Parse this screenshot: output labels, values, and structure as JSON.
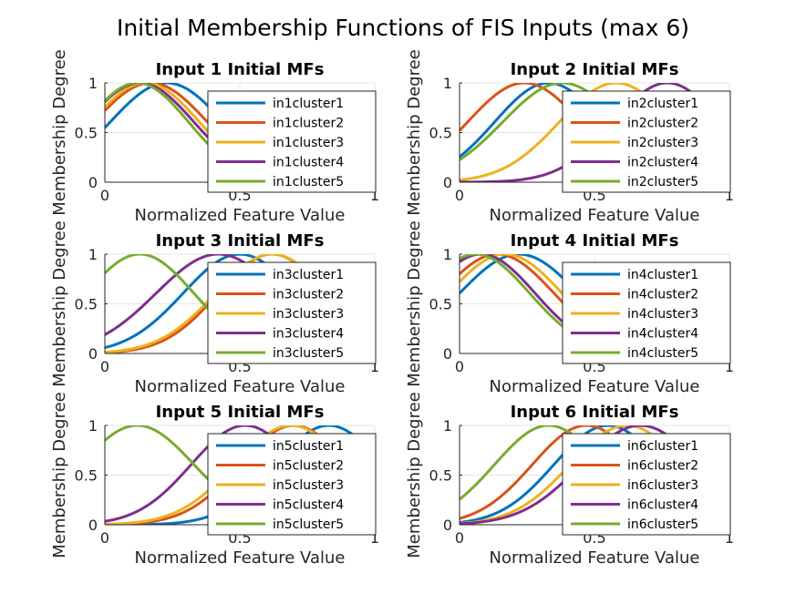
{
  "figure_title": "Initial Membership Functions of FIS Inputs (max 6)",
  "colors": [
    "#0072BD",
    "#D95319",
    "#EDB120",
    "#7E2F8E",
    "#77AC30"
  ],
  "chart_data": [
    {
      "type": "line",
      "title": "Input 1 Initial MFs",
      "xlabel": "Normalized Feature Value",
      "ylabel": "Membership Degree",
      "xlim": [
        0,
        1
      ],
      "ylim": [
        0,
        1
      ],
      "xticks": [
        "0",
        "0.5",
        "1"
      ],
      "yticks": [
        "0",
        "0.5",
        "1"
      ],
      "grid": true,
      "legend_position": "top-right",
      "series": [
        {
          "name": "in1cluster1",
          "mf": "gaussian",
          "center": 0.23,
          "sigma": 0.21
        },
        {
          "name": "in1cluster2",
          "mf": "gaussian",
          "center": 0.17,
          "sigma": 0.21
        },
        {
          "name": "in1cluster3",
          "mf": "gaussian",
          "center": 0.15,
          "sigma": 0.2
        },
        {
          "name": "in1cluster4",
          "mf": "gaussian",
          "center": 0.13,
          "sigma": 0.2
        },
        {
          "name": "in1cluster5",
          "mf": "gaussian",
          "center": 0.12,
          "sigma": 0.19
        }
      ]
    },
    {
      "type": "line",
      "title": "Input 2 Initial MFs",
      "xlabel": "Normalized Feature Value",
      "ylabel": "Membership Degree",
      "xlim": [
        0,
        1
      ],
      "ylim": [
        0,
        1
      ],
      "xticks": [
        "0",
        "0.5",
        "1"
      ],
      "yticks": [
        "0",
        "0.5",
        "1"
      ],
      "grid": true,
      "legend_position": "top-right",
      "series": [
        {
          "name": "in2cluster1",
          "mf": "gaussian",
          "center": 0.33,
          "sigma": 0.2
        },
        {
          "name": "in2cluster2",
          "mf": "gaussian",
          "center": 0.24,
          "sigma": 0.21
        },
        {
          "name": "in2cluster3",
          "mf": "gaussian",
          "center": 0.58,
          "sigma": 0.21
        },
        {
          "name": "in2cluster4",
          "mf": "gaussian",
          "center": 0.77,
          "sigma": 0.2
        },
        {
          "name": "in2cluster5",
          "mf": "gaussian",
          "center": 0.38,
          "sigma": 0.22
        }
      ]
    },
    {
      "type": "line",
      "title": "Input 3 Initial MFs",
      "xlabel": "Normalized Feature Value",
      "ylabel": "Membership Degree",
      "xlim": [
        0,
        1
      ],
      "ylim": [
        0,
        1
      ],
      "xticks": [
        "0",
        "0.5",
        "1"
      ],
      "yticks": [
        "0",
        "0.5",
        "1"
      ],
      "grid": true,
      "legend_position": "top-right",
      "series": [
        {
          "name": "in3cluster1",
          "mf": "gaussian",
          "center": 0.5,
          "sigma": 0.21
        },
        {
          "name": "in3cluster2",
          "mf": "gaussian",
          "center": 0.62,
          "sigma": 0.2
        },
        {
          "name": "in3cluster3",
          "mf": "gaussian",
          "center": 0.62,
          "sigma": 0.21
        },
        {
          "name": "in3cluster4",
          "mf": "gaussian",
          "center": 0.42,
          "sigma": 0.23
        },
        {
          "name": "in3cluster5",
          "mf": "gaussian",
          "center": 0.13,
          "sigma": 0.2
        }
      ]
    },
    {
      "type": "line",
      "title": "Input 4 Initial MFs",
      "xlabel": "Normalized Feature Value",
      "ylabel": "Membership Degree",
      "xlim": [
        0,
        1
      ],
      "ylim": [
        0,
        1
      ],
      "xticks": [
        "0",
        "0.5",
        "1"
      ],
      "yticks": [
        "0",
        "0.5",
        "1"
      ],
      "grid": true,
      "legend_position": "top-right",
      "series": [
        {
          "name": "in4cluster1",
          "mf": "gaussian",
          "center": 0.22,
          "sigma": 0.22
        },
        {
          "name": "in4cluster2",
          "mf": "gaussian",
          "center": 0.14,
          "sigma": 0.21
        },
        {
          "name": "in4cluster3",
          "mf": "gaussian",
          "center": 0.17,
          "sigma": 0.21
        },
        {
          "name": "in4cluster4",
          "mf": "gaussian",
          "center": 0.08,
          "sigma": 0.2
        },
        {
          "name": "in4cluster5",
          "mf": "gaussian",
          "center": 0.06,
          "sigma": 0.2
        }
      ]
    },
    {
      "type": "line",
      "title": "Input 5 Initial MFs",
      "xlabel": "Normalized Feature Value",
      "ylabel": "Membership Degree",
      "xlim": [
        0,
        1
      ],
      "ylim": [
        0,
        1
      ],
      "xticks": [
        "0",
        "0.5",
        "1"
      ],
      "yticks": [
        "0",
        "0.5",
        "1"
      ],
      "grid": true,
      "legend_position": "top-right",
      "series": [
        {
          "name": "in5cluster1",
          "mf": "gaussian",
          "center": 0.83,
          "sigma": 0.2
        },
        {
          "name": "in5cluster2",
          "mf": "gaussian",
          "center": 0.7,
          "sigma": 0.2
        },
        {
          "name": "in5cluster3",
          "mf": "gaussian",
          "center": 0.69,
          "sigma": 0.21
        },
        {
          "name": "in5cluster4",
          "mf": "gaussian",
          "center": 0.52,
          "sigma": 0.2
        },
        {
          "name": "in5cluster5",
          "mf": "gaussian",
          "center": 0.12,
          "sigma": 0.21
        }
      ]
    },
    {
      "type": "line",
      "title": "Input 6 Initial MFs",
      "xlabel": "Normalized Feature Value",
      "ylabel": "Membership Degree",
      "xlim": [
        0,
        1
      ],
      "ylim": [
        0,
        1
      ],
      "xticks": [
        "0",
        "0.5",
        "1"
      ],
      "yticks": [
        "0",
        "0.5",
        "1"
      ],
      "grid": true,
      "legend_position": "top-right",
      "series": [
        {
          "name": "in6cluster1",
          "mf": "gaussian",
          "center": 0.55,
          "sigma": 0.2
        },
        {
          "name": "in6cluster2",
          "mf": "gaussian",
          "center": 0.47,
          "sigma": 0.2
        },
        {
          "name": "in6cluster3",
          "mf": "gaussian",
          "center": 0.62,
          "sigma": 0.21
        },
        {
          "name": "in6cluster4",
          "mf": "gaussian",
          "center": 0.67,
          "sigma": 0.22
        },
        {
          "name": "in6cluster5",
          "mf": "gaussian",
          "center": 0.33,
          "sigma": 0.2
        }
      ]
    }
  ]
}
